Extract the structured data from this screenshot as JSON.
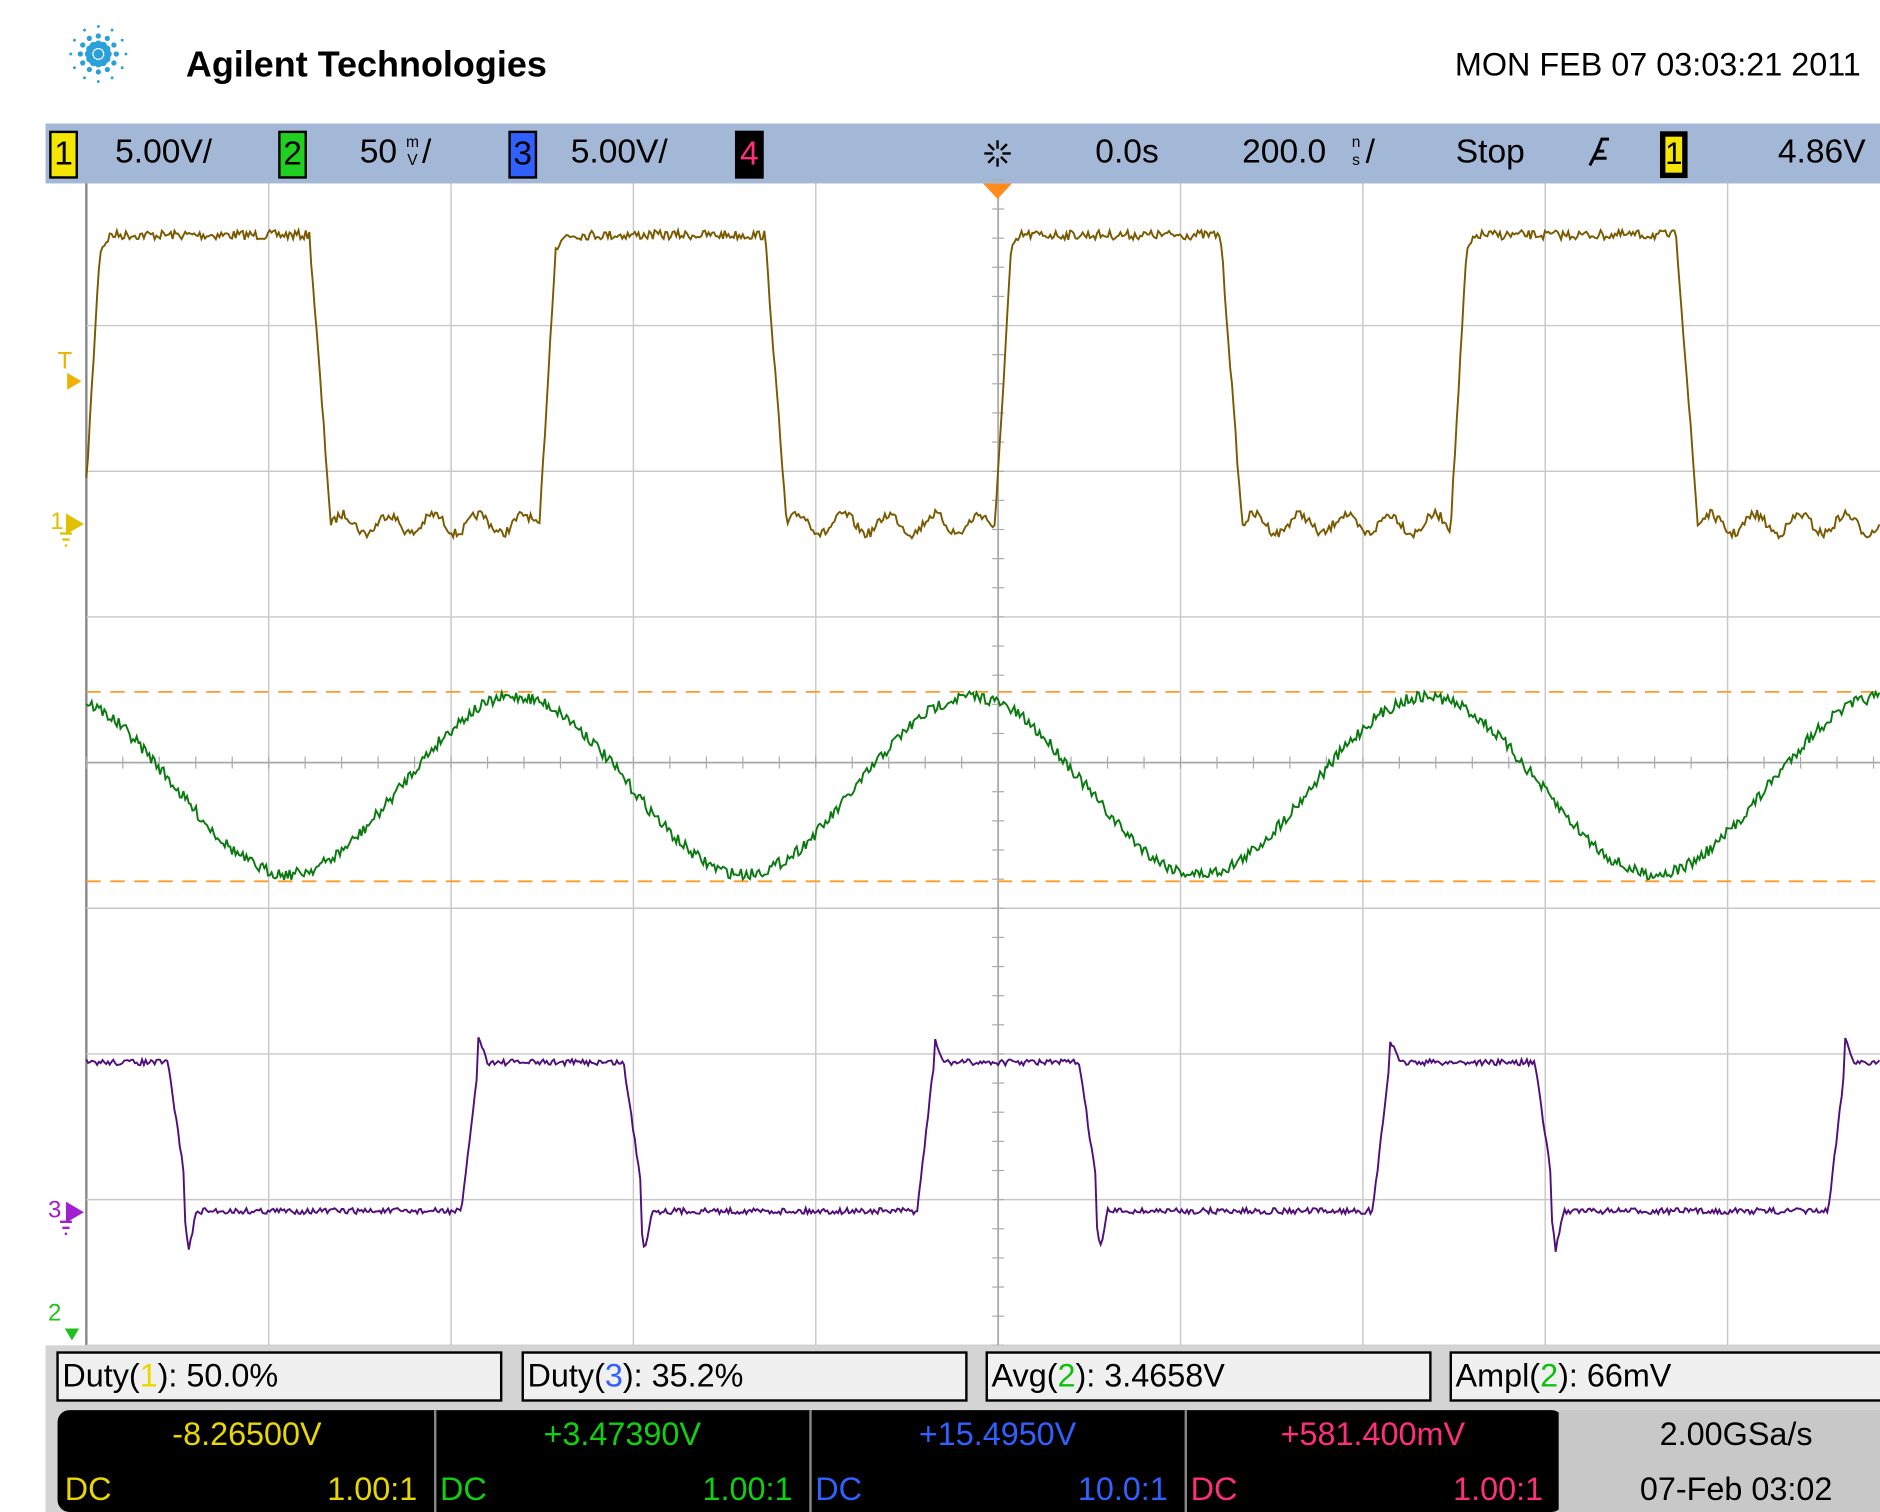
{
  "header": {
    "brand": "Agilent Technologies",
    "datetime": "MON FEB 07 03:03:21 2011"
  },
  "channel_bar": {
    "channels": [
      {
        "number": "1",
        "scale": "5.00V/"
      },
      {
        "number": "2",
        "scale": "50",
        "unit_top": "m",
        "unit_bottom": "V",
        "suffix": "/"
      },
      {
        "number": "3",
        "scale": "5.00V/"
      },
      {
        "number": "4"
      }
    ],
    "time_delay": "0.0s",
    "time_scale": "200.0",
    "time_unit_top": "n",
    "time_unit_bottom": "s",
    "time_suffix": "/",
    "run_state": "Stop",
    "trigger_source": "1",
    "trigger_level": "4.86V"
  },
  "markers": {
    "trigger": "T",
    "ch1": "1",
    "ch3": "3",
    "ch2": "2"
  },
  "measurements": [
    {
      "label": "Duty(",
      "channel": "1",
      "result": "): 50.0%"
    },
    {
      "label": "Duty(",
      "channel": "3",
      "result": "): 35.2%"
    },
    {
      "label": "Avg(",
      "channel": "2",
      "result": "): 3.4658V"
    },
    {
      "label": "Ampl(",
      "channel": "2",
      "result": "): 66mV"
    }
  ],
  "channel_status": [
    {
      "value": "-8.26500V",
      "coupling": "DC",
      "probe": "1.00:1"
    },
    {
      "value": "+3.47390V",
      "coupling": "DC",
      "probe": "1.00:1"
    },
    {
      "value": "+15.4950V",
      "coupling": "DC",
      "probe": "10.0:1"
    },
    {
      "value": "+581.400mV",
      "coupling": "DC",
      "probe": "1.00:1"
    }
  ],
  "acquisition": {
    "sample_rate": "2.00GSa/s",
    "date": "07-Feb 03:02"
  }
}
